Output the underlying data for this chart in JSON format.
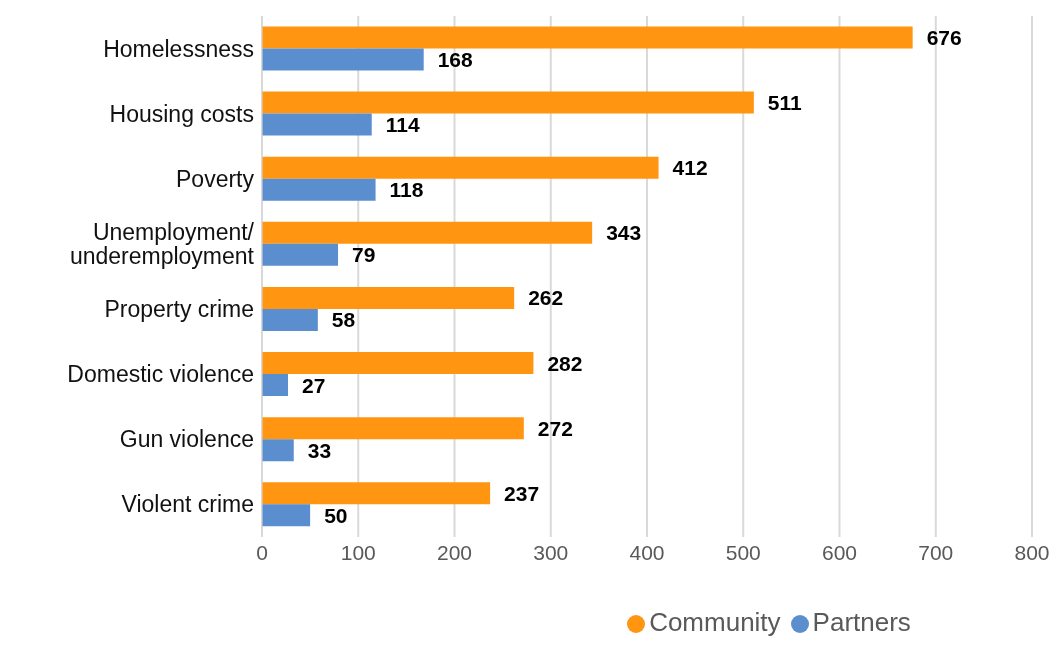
{
  "chart_data": {
    "type": "bar",
    "orientation": "horizontal",
    "categories": [
      "Homelessness",
      "Housing costs",
      "Poverty",
      "Unemployment/underemployment",
      "Property crime",
      "Domestic violence",
      "Gun violence",
      "Violent crime"
    ],
    "series": [
      {
        "name": "Community",
        "color": "#ff9510",
        "values": [
          676,
          511,
          412,
          343,
          262,
          282,
          272,
          237
        ]
      },
      {
        "name": "Partners",
        "color": "#5b8ecf",
        "values": [
          168,
          114,
          118,
          79,
          58,
          27,
          33,
          50
        ]
      }
    ],
    "xlim": [
      0,
      800
    ],
    "xticks": [
      0,
      100,
      200,
      300,
      400,
      500,
      600,
      700,
      800
    ],
    "grid": "x",
    "legend": "bottom",
    "data_labels": true
  }
}
